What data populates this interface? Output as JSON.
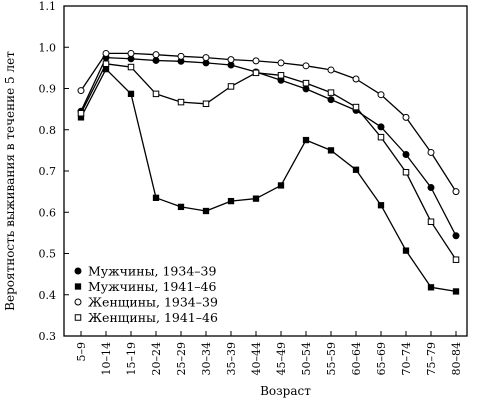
{
  "chart_data": {
    "type": "line",
    "title": "",
    "xlabel": "Возраст",
    "ylabel": "Вероятность выживания в течение 5 лет",
    "ylim": [
      0.3,
      1.1
    ],
    "yticks": [
      "0.3",
      "0.4",
      "0.5",
      "0.6",
      "0.7",
      "0.8",
      "0.9",
      "1.0",
      "1.1"
    ],
    "categories": [
      "5–9",
      "10–14",
      "15–19",
      "20–24",
      "25–29",
      "30–34",
      "35–39",
      "40–44",
      "45–49",
      "50–54",
      "55–59",
      "60–64",
      "65–69",
      "70–74",
      "75–79",
      "80–84"
    ],
    "grid": false,
    "legend_position": "bottom-left",
    "series": [
      {
        "name": "Мужчины, 1934–39",
        "marker": "filled-circle",
        "values": [
          0.845,
          0.975,
          0.972,
          0.968,
          0.966,
          0.962,
          0.957,
          0.94,
          0.92,
          0.899,
          0.873,
          0.847,
          0.807,
          0.74,
          0.66,
          0.543
        ]
      },
      {
        "name": "Мужчины, 1941–46",
        "marker": "filled-square",
        "values": [
          0.83,
          0.947,
          0.887,
          0.635,
          0.613,
          0.603,
          0.627,
          0.633,
          0.665,
          0.775,
          0.75,
          0.703,
          0.617,
          0.507,
          0.418,
          0.408
        ]
      },
      {
        "name": "Женщины, 1934–39",
        "marker": "open-circle",
        "values": [
          0.895,
          0.985,
          0.985,
          0.982,
          0.978,
          0.975,
          0.97,
          0.967,
          0.962,
          0.955,
          0.945,
          0.923,
          0.885,
          0.83,
          0.745,
          0.65
        ]
      },
      {
        "name": "Женщины, 1941–46",
        "marker": "open-square",
        "values": [
          0.84,
          0.96,
          0.952,
          0.887,
          0.867,
          0.863,
          0.905,
          0.938,
          0.932,
          0.913,
          0.89,
          0.855,
          0.782,
          0.697,
          0.577,
          0.485
        ]
      }
    ]
  }
}
